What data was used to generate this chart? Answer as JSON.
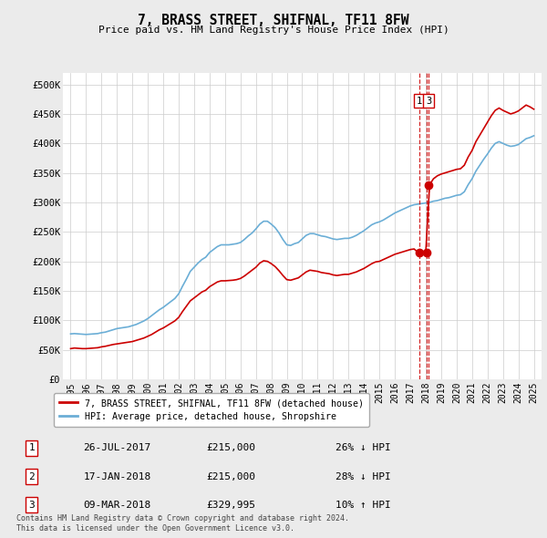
{
  "title": "7, BRASS STREET, SHIFNAL, TF11 8FW",
  "subtitle": "Price paid vs. HM Land Registry's House Price Index (HPI)",
  "ylabel_ticks": [
    "£0",
    "£50K",
    "£100K",
    "£150K",
    "£200K",
    "£250K",
    "£300K",
    "£350K",
    "£400K",
    "£450K",
    "£500K"
  ],
  "ytick_values": [
    0,
    50000,
    100000,
    150000,
    200000,
    250000,
    300000,
    350000,
    400000,
    450000,
    500000
  ],
  "ylim": [
    0,
    520000
  ],
  "xlim_start": 1994.5,
  "xlim_end": 2025.5,
  "hpi_color": "#6baed6",
  "price_color": "#cc0000",
  "dashed_color": "#cc0000",
  "transactions": [
    {
      "num": "1",
      "date_label": "26-JUL-2017",
      "price_label": "£215,000",
      "hpi_label": "26% ↓ HPI",
      "x_year": 2017.57,
      "price_y": 215000
    },
    {
      "num": "2",
      "date_label": "17-JAN-2018",
      "price_label": "£215,000",
      "hpi_label": "28% ↓ HPI",
      "x_year": 2018.04,
      "price_y": 215000
    },
    {
      "num": "3",
      "date_label": "09-MAR-2018",
      "price_label": "£329,995",
      "hpi_label": "10% ↑ HPI",
      "x_year": 2018.19,
      "price_y": 329995
    }
  ],
  "show_box_nums": [
    "1",
    "3"
  ],
  "legend_price": "7, BRASS STREET, SHIFNAL, TF11 8FW (detached house)",
  "legend_hpi": "HPI: Average price, detached house, Shropshire",
  "footer1": "Contains HM Land Registry data © Crown copyright and database right 2024.",
  "footer2": "This data is licensed under the Open Government Licence v3.0.",
  "background_color": "#ebebeb",
  "plot_bg_color": "#ffffff",
  "hpi_data": [
    [
      1995.0,
      77000
    ],
    [
      1995.25,
      77500
    ],
    [
      1995.5,
      77000
    ],
    [
      1995.75,
      76500
    ],
    [
      1996.0,
      76000
    ],
    [
      1996.25,
      76500
    ],
    [
      1996.5,
      77000
    ],
    [
      1996.75,
      77500
    ],
    [
      1997.0,
      79000
    ],
    [
      1997.25,
      80000
    ],
    [
      1997.5,
      82000
    ],
    [
      1997.75,
      84000
    ],
    [
      1998.0,
      86000
    ],
    [
      1998.25,
      87000
    ],
    [
      1998.5,
      88000
    ],
    [
      1998.75,
      89000
    ],
    [
      1999.0,
      91000
    ],
    [
      1999.25,
      93000
    ],
    [
      1999.5,
      96000
    ],
    [
      1999.75,
      99000
    ],
    [
      2000.0,
      103000
    ],
    [
      2000.25,
      108000
    ],
    [
      2000.5,
      113000
    ],
    [
      2000.75,
      118000
    ],
    [
      2001.0,
      122000
    ],
    [
      2001.25,
      127000
    ],
    [
      2001.5,
      132000
    ],
    [
      2001.75,
      137000
    ],
    [
      2002.0,
      145000
    ],
    [
      2002.25,
      158000
    ],
    [
      2002.5,
      170000
    ],
    [
      2002.75,
      183000
    ],
    [
      2003.0,
      190000
    ],
    [
      2003.25,
      197000
    ],
    [
      2003.5,
      203000
    ],
    [
      2003.75,
      207000
    ],
    [
      2004.0,
      215000
    ],
    [
      2004.25,
      220000
    ],
    [
      2004.5,
      225000
    ],
    [
      2004.75,
      228000
    ],
    [
      2005.0,
      228000
    ],
    [
      2005.25,
      228000
    ],
    [
      2005.5,
      229000
    ],
    [
      2005.75,
      230000
    ],
    [
      2006.0,
      232000
    ],
    [
      2006.25,
      237000
    ],
    [
      2006.5,
      243000
    ],
    [
      2006.75,
      248000
    ],
    [
      2007.0,
      255000
    ],
    [
      2007.25,
      263000
    ],
    [
      2007.5,
      268000
    ],
    [
      2007.75,
      268000
    ],
    [
      2008.0,
      263000
    ],
    [
      2008.25,
      257000
    ],
    [
      2008.5,
      248000
    ],
    [
      2008.75,
      237000
    ],
    [
      2009.0,
      228000
    ],
    [
      2009.25,
      227000
    ],
    [
      2009.5,
      230000
    ],
    [
      2009.75,
      232000
    ],
    [
      2010.0,
      238000
    ],
    [
      2010.25,
      244000
    ],
    [
      2010.5,
      247000
    ],
    [
      2010.75,
      247000
    ],
    [
      2011.0,
      245000
    ],
    [
      2011.25,
      243000
    ],
    [
      2011.5,
      242000
    ],
    [
      2011.75,
      240000
    ],
    [
      2012.0,
      238000
    ],
    [
      2012.25,
      237000
    ],
    [
      2012.5,
      238000
    ],
    [
      2012.75,
      239000
    ],
    [
      2013.0,
      239000
    ],
    [
      2013.25,
      241000
    ],
    [
      2013.5,
      244000
    ],
    [
      2013.75,
      248000
    ],
    [
      2014.0,
      252000
    ],
    [
      2014.25,
      257000
    ],
    [
      2014.5,
      262000
    ],
    [
      2014.75,
      265000
    ],
    [
      2015.0,
      267000
    ],
    [
      2015.25,
      270000
    ],
    [
      2015.5,
      274000
    ],
    [
      2015.75,
      278000
    ],
    [
      2016.0,
      282000
    ],
    [
      2016.25,
      285000
    ],
    [
      2016.5,
      288000
    ],
    [
      2016.75,
      291000
    ],
    [
      2017.0,
      294000
    ],
    [
      2017.25,
      296000
    ],
    [
      2017.5,
      297000
    ],
    [
      2017.75,
      298000
    ],
    [
      2018.0,
      299000
    ],
    [
      2018.25,
      300000
    ],
    [
      2018.5,
      302000
    ],
    [
      2018.75,
      303000
    ],
    [
      2019.0,
      305000
    ],
    [
      2019.25,
      307000
    ],
    [
      2019.5,
      308000
    ],
    [
      2019.75,
      310000
    ],
    [
      2020.0,
      312000
    ],
    [
      2020.25,
      313000
    ],
    [
      2020.5,
      318000
    ],
    [
      2020.75,
      330000
    ],
    [
      2021.0,
      340000
    ],
    [
      2021.25,
      353000
    ],
    [
      2021.5,
      363000
    ],
    [
      2021.75,
      373000
    ],
    [
      2022.0,
      382000
    ],
    [
      2022.25,
      392000
    ],
    [
      2022.5,
      400000
    ],
    [
      2022.75,
      403000
    ],
    [
      2023.0,
      400000
    ],
    [
      2023.25,
      397000
    ],
    [
      2023.5,
      395000
    ],
    [
      2023.75,
      396000
    ],
    [
      2024.0,
      398000
    ],
    [
      2024.25,
      403000
    ],
    [
      2024.5,
      408000
    ],
    [
      2024.75,
      410000
    ],
    [
      2025.0,
      413000
    ]
  ],
  "price_data": [
    [
      1995.0,
      52000
    ],
    [
      1995.25,
      53000
    ],
    [
      1995.5,
      52500
    ],
    [
      1995.75,
      52000
    ],
    [
      1996.0,
      52000
    ],
    [
      1996.25,
      52500
    ],
    [
      1996.5,
      53000
    ],
    [
      1996.75,
      53500
    ],
    [
      1997.0,
      55000
    ],
    [
      1997.25,
      56000
    ],
    [
      1997.5,
      57500
    ],
    [
      1997.75,
      59000
    ],
    [
      1998.0,
      60000
    ],
    [
      1998.25,
      61000
    ],
    [
      1998.5,
      62000
    ],
    [
      1998.75,
      63000
    ],
    [
      1999.0,
      64000
    ],
    [
      1999.25,
      66000
    ],
    [
      1999.5,
      68000
    ],
    [
      1999.75,
      70000
    ],
    [
      2000.0,
      73000
    ],
    [
      2000.25,
      76000
    ],
    [
      2000.5,
      80000
    ],
    [
      2000.75,
      84000
    ],
    [
      2001.0,
      87000
    ],
    [
      2001.25,
      91000
    ],
    [
      2001.5,
      95000
    ],
    [
      2001.75,
      99000
    ],
    [
      2002.0,
      105000
    ],
    [
      2002.25,
      115000
    ],
    [
      2002.5,
      124000
    ],
    [
      2002.75,
      133000
    ],
    [
      2003.0,
      138000
    ],
    [
      2003.25,
      143000
    ],
    [
      2003.5,
      148000
    ],
    [
      2003.75,
      151000
    ],
    [
      2004.0,
      157000
    ],
    [
      2004.25,
      161000
    ],
    [
      2004.5,
      165000
    ],
    [
      2004.75,
      167000
    ],
    [
      2005.0,
      167000
    ],
    [
      2005.25,
      167500
    ],
    [
      2005.5,
      168000
    ],
    [
      2005.75,
      169000
    ],
    [
      2006.0,
      171000
    ],
    [
      2006.25,
      175000
    ],
    [
      2006.5,
      180000
    ],
    [
      2006.75,
      185000
    ],
    [
      2007.0,
      190000
    ],
    [
      2007.25,
      197000
    ],
    [
      2007.5,
      201000
    ],
    [
      2007.75,
      200000
    ],
    [
      2008.0,
      196000
    ],
    [
      2008.25,
      191000
    ],
    [
      2008.5,
      184000
    ],
    [
      2008.75,
      176000
    ],
    [
      2009.0,
      169000
    ],
    [
      2009.25,
      168000
    ],
    [
      2009.5,
      170000
    ],
    [
      2009.75,
      172000
    ],
    [
      2010.0,
      177000
    ],
    [
      2010.25,
      182000
    ],
    [
      2010.5,
      185000
    ],
    [
      2010.75,
      184000
    ],
    [
      2011.0,
      183000
    ],
    [
      2011.25,
      181000
    ],
    [
      2011.5,
      180000
    ],
    [
      2011.75,
      179000
    ],
    [
      2012.0,
      177000
    ],
    [
      2012.25,
      176000
    ],
    [
      2012.5,
      177000
    ],
    [
      2012.75,
      178000
    ],
    [
      2013.0,
      178000
    ],
    [
      2013.25,
      180000
    ],
    [
      2013.5,
      182000
    ],
    [
      2013.75,
      185000
    ],
    [
      2014.0,
      188000
    ],
    [
      2014.25,
      192000
    ],
    [
      2014.5,
      196000
    ],
    [
      2014.75,
      199000
    ],
    [
      2015.0,
      200000
    ],
    [
      2015.25,
      203000
    ],
    [
      2015.5,
      206000
    ],
    [
      2015.75,
      209000
    ],
    [
      2016.0,
      212000
    ],
    [
      2016.25,
      214000
    ],
    [
      2016.5,
      216000
    ],
    [
      2016.75,
      218000
    ],
    [
      2017.0,
      220000
    ],
    [
      2017.25,
      221000
    ],
    [
      2017.5,
      215000
    ],
    [
      2017.75,
      215000
    ],
    [
      2018.0,
      215000
    ],
    [
      2018.25,
      330000
    ],
    [
      2018.5,
      340000
    ],
    [
      2018.75,
      345000
    ],
    [
      2019.0,
      348000
    ],
    [
      2019.25,
      350000
    ],
    [
      2019.5,
      352000
    ],
    [
      2019.75,
      354000
    ],
    [
      2020.0,
      356000
    ],
    [
      2020.25,
      357000
    ],
    [
      2020.5,
      363000
    ],
    [
      2020.75,
      377000
    ],
    [
      2021.0,
      388000
    ],
    [
      2021.25,
      403000
    ],
    [
      2021.5,
      414000
    ],
    [
      2021.75,
      425000
    ],
    [
      2022.0,
      436000
    ],
    [
      2022.25,
      447000
    ],
    [
      2022.5,
      456000
    ],
    [
      2022.75,
      460000
    ],
    [
      2023.0,
      456000
    ],
    [
      2023.25,
      453000
    ],
    [
      2023.5,
      450000
    ],
    [
      2023.75,
      452000
    ],
    [
      2024.0,
      455000
    ],
    [
      2024.25,
      460000
    ],
    [
      2024.5,
      465000
    ],
    [
      2024.75,
      462000
    ],
    [
      2025.0,
      458000
    ]
  ]
}
